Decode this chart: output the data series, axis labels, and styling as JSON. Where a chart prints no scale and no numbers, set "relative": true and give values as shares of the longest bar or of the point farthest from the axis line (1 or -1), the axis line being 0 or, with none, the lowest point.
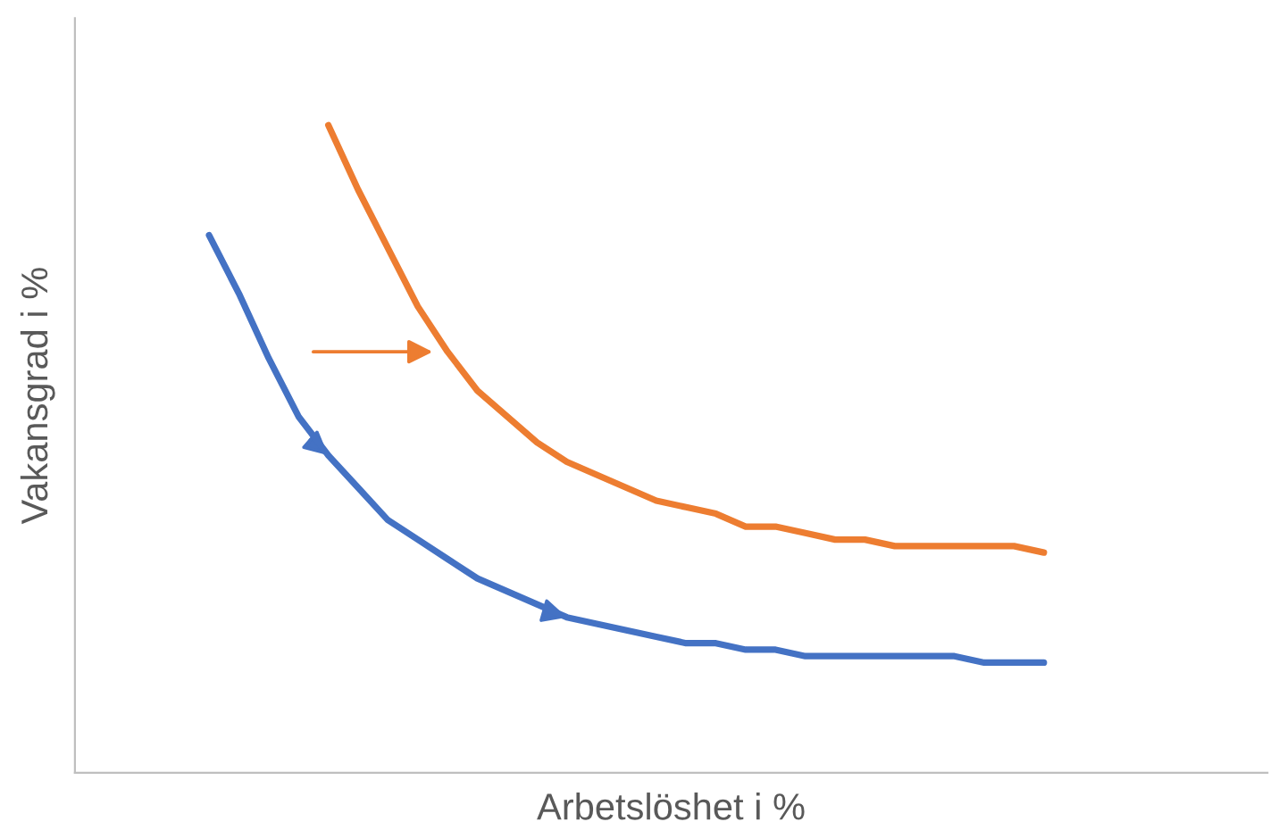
{
  "chart_data": {
    "type": "line",
    "relative": true,
    "xlabel": "Arbetslöshet i %",
    "ylabel": "Vakansgrad i %",
    "legend": false,
    "marker": "none",
    "line_style": "solid",
    "categories": [
      null,
      null,
      null,
      null,
      null,
      null,
      null,
      null,
      null,
      null,
      null,
      null,
      null,
      null,
      null,
      null,
      null,
      null,
      null,
      null,
      null,
      null,
      null,
      null,
      null,
      null,
      null,
      null,
      null,
      null,
      null,
      null,
      null,
      null,
      null,
      null,
      null,
      null,
      null,
      null
    ],
    "series": [
      {
        "color": "#4472c4",
        "values": [
          null,
          null,
          null,
          null,
          0.83,
          0.74,
          0.64,
          0.55,
          0.49,
          0.44,
          0.39,
          0.36,
          0.33,
          0.3,
          0.28,
          0.26,
          0.24,
          0.23,
          0.22,
          0.21,
          0.2,
          0.2,
          0.19,
          0.19,
          0.18,
          0.18,
          0.18,
          0.18,
          0.18,
          0.18,
          0.17,
          0.17,
          0.17,
          null,
          null,
          null,
          null,
          null,
          null,
          null
        ]
      },
      {
        "color": "#ed7d31",
        "values": [
          null,
          null,
          null,
          null,
          null,
          null,
          null,
          null,
          1.0,
          0.9,
          0.81,
          0.72,
          0.65,
          0.59,
          0.55,
          0.51,
          0.48,
          0.46,
          0.44,
          0.42,
          0.41,
          0.4,
          0.38,
          0.38,
          0.37,
          0.36,
          0.36,
          0.35,
          0.35,
          0.35,
          0.35,
          0.35,
          0.34,
          null,
          null,
          null,
          null,
          null,
          null,
          null
        ]
      }
    ]
  }
}
